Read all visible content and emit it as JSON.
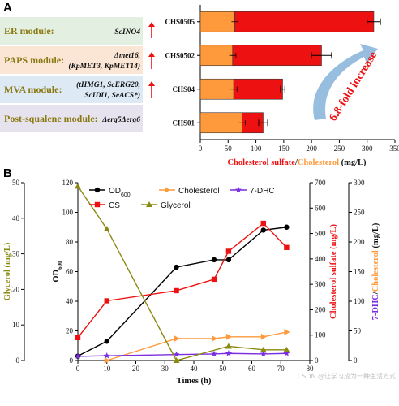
{
  "panel_a": {
    "letter": "A",
    "modules": [
      {
        "name": "ER module:",
        "genes_line1": "ScINO4",
        "genes_line2": "",
        "bg": "#e3efe0"
      },
      {
        "name": "PAPS module:",
        "genes_line1": "Δmet16,",
        "genes_line2": "(KpMET3, KpMET14)",
        "bg": "#fbe6d6"
      },
      {
        "name": "MVA module:",
        "genes_line1": "(tHMG1, ScERG20,",
        "genes_line2": "ScIDI1, SeACS*)",
        "bg": "#dde9f5"
      },
      {
        "name": "Post-squalene module:",
        "genes_line1": "Δerg5Δerg6",
        "genes_line2": "",
        "bg": "#e6e2ee"
      }
    ],
    "annotation": "6.8-fold increase",
    "xlabel_part1": "Cholesterol sulfate",
    "xlabel_sep": "/",
    "xlabel_part2": "Cholesterol",
    "xlabel_unit": " (mg/L)"
  },
  "panel_b": {
    "letter": "B",
    "legend": [
      "OD600",
      "Cholesterol",
      "7-DHC",
      "CS",
      "Glycerol"
    ]
  },
  "watermark": "CSDN @让学习成为一种生活方式",
  "colors": {
    "cholesterol": "#ff9a3c",
    "cs": "#ee1111",
    "od": "#000000",
    "dhc": "#7a2ee0",
    "glycerol": "#8a8a10",
    "arrow_up": "#ee1111",
    "fold_arrow": "#8cb6dc",
    "fold_text": "#ee1111"
  },
  "chart_data": [
    {
      "type": "bar",
      "orientation": "horizontal",
      "stacked": true,
      "categories": [
        "CHS0505",
        "CHS0502",
        "CHS04",
        "CHS01"
      ],
      "series": [
        {
          "name": "Cholesterol",
          "values": [
            62,
            58,
            60,
            75
          ]
        },
        {
          "name": "Cholesterol sulfate",
          "values": [
            250,
            160,
            88,
            38
          ]
        }
      ],
      "totals": [
        312,
        218,
        148,
        113
      ],
      "errors": [
        12,
        18,
        4,
        8
      ],
      "xticks": [
        0,
        50,
        100,
        150,
        200,
        250,
        300,
        350
      ],
      "xlim": [
        0,
        350
      ],
      "xlabel": "Cholesterol sulfate/Cholesterol (mg/L)"
    },
    {
      "type": "line",
      "xlabel": "Times (h)",
      "x_ticks": [
        0,
        10,
        20,
        30,
        40,
        50,
        60,
        70,
        80
      ],
      "xlim": [
        0,
        80
      ],
      "axes": {
        "glycerol": {
          "label": "Glycerol (mg/L)",
          "lim": [
            0,
            50
          ],
          "ticks": [
            0,
            10,
            20,
            30,
            40,
            50
          ]
        },
        "od": {
          "label": "OD600",
          "lim": [
            0,
            120
          ],
          "ticks": [
            0,
            20,
            40,
            60,
            80,
            100,
            120
          ]
        },
        "cs": {
          "label": "Cholesterol sulfate (mg/L)",
          "lim": [
            0,
            700
          ],
          "ticks": [
            0,
            100,
            200,
            300,
            400,
            500,
            600,
            700
          ]
        },
        "chol": {
          "label": "7-DHC/Cholesterol (mg/L)",
          "lim": [
            0,
            300
          ],
          "ticks": [
            0,
            50,
            100,
            150,
            200,
            250,
            300
          ]
        }
      },
      "series": [
        {
          "name": "OD600",
          "axis": "od",
          "marker": "circle",
          "x": [
            0,
            10,
            34,
            47,
            52,
            64,
            72
          ],
          "y": [
            3,
            13,
            63,
            68,
            68,
            88,
            90
          ]
        },
        {
          "name": "Cholesterol",
          "axis": "chol",
          "marker": "triangle-right",
          "x": [
            10,
            34,
            47,
            52,
            64,
            72
          ],
          "y": [
            0,
            37,
            37,
            40,
            40,
            48
          ]
        },
        {
          "name": "7-DHC",
          "axis": "dhc",
          "marker": "star",
          "x": [
            0,
            10,
            34,
            47,
            52,
            64,
            72
          ],
          "y": [
            7,
            8,
            10,
            11,
            12,
            11,
            12
          ]
        },
        {
          "name": "CS",
          "axis": "cs",
          "marker": "square",
          "x": [
            0,
            10,
            34,
            47,
            52,
            64,
            72
          ],
          "y": [
            90,
            235,
            275,
            320,
            430,
            540,
            445
          ]
        },
        {
          "name": "Glycerol",
          "axis": "glycerol",
          "marker": "triangle-up",
          "x": [
            0,
            10,
            34,
            52,
            64,
            72
          ],
          "y": [
            49,
            37,
            0,
            4,
            3,
            3
          ]
        }
      ]
    }
  ]
}
